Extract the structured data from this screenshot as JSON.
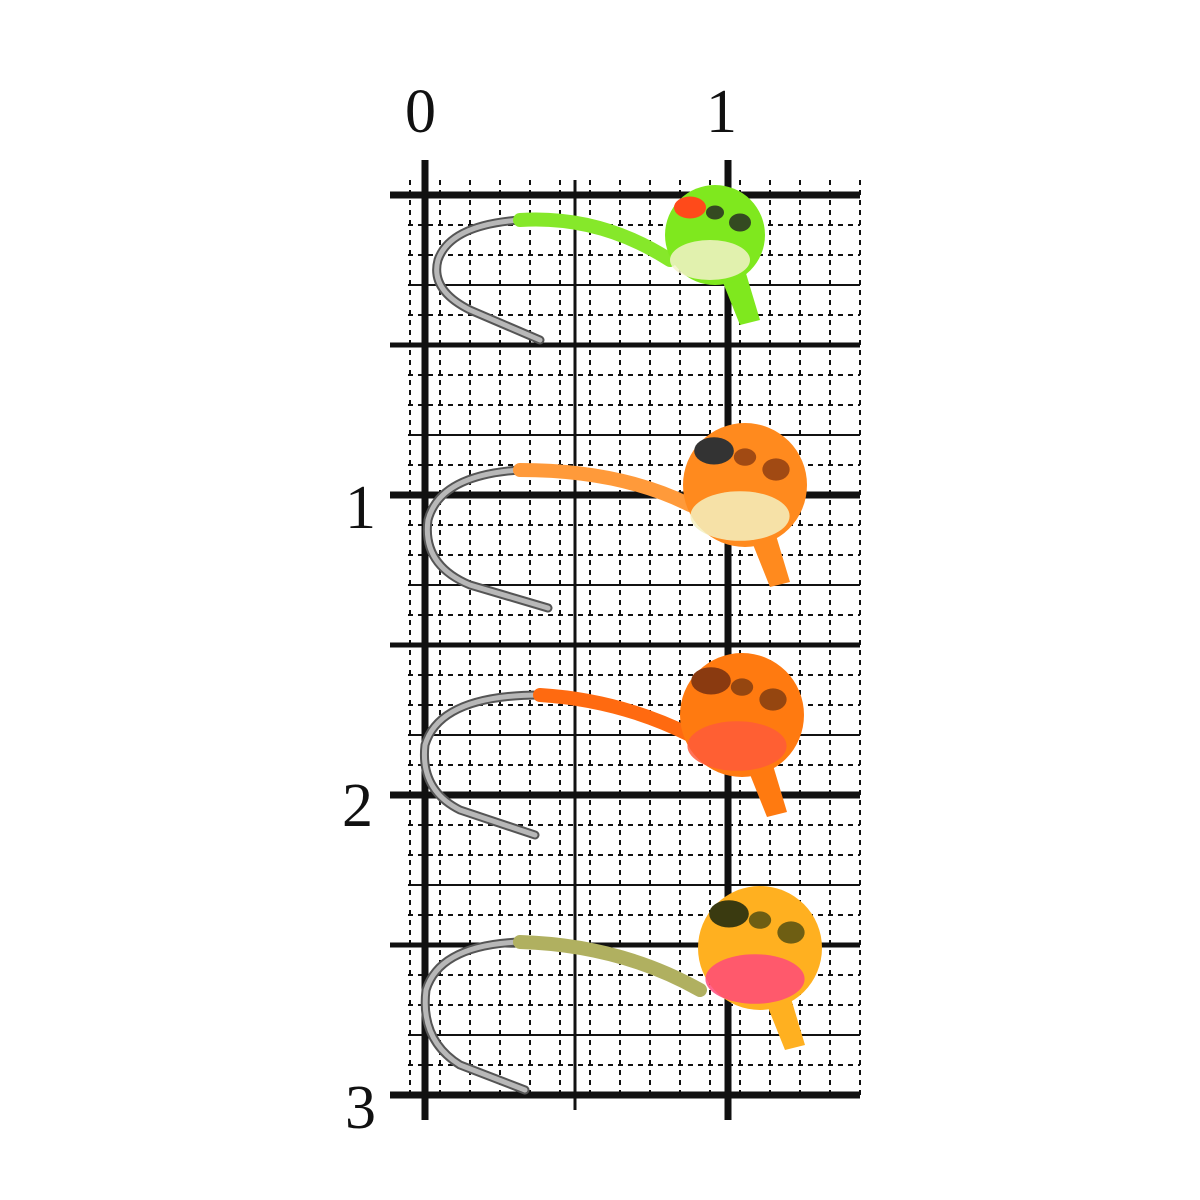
{
  "ruler": {
    "top_labels": [
      "0",
      "1"
    ],
    "left_labels": [
      "1",
      "2",
      "3"
    ]
  },
  "colors": {
    "grid": "#111111",
    "paper": "#ffffff",
    "hook": "#b8b8b8"
  },
  "jigs": [
    {
      "body": "#7fe81e",
      "belly": "#f2f2c8",
      "eye": "#ff4a1a",
      "spots": "#222222",
      "shank": "#86e82a"
    },
    {
      "body": "#ff8a1e",
      "belly": "#f4f0c0",
      "eye": "#333333",
      "spots": "#8a3a10",
      "shank": "#ff9a3a"
    },
    {
      "body": "#ff7a10",
      "belly": "#ff5a3a",
      "eye": "#8a3a10",
      "spots": "#7a3a10",
      "shank": "#ff6a10"
    },
    {
      "body": "#ffb020",
      "belly": "#ff4a7a",
      "eye": "#3a3a10",
      "spots": "#4a4a10",
      "shank": "#b0b060"
    }
  ]
}
